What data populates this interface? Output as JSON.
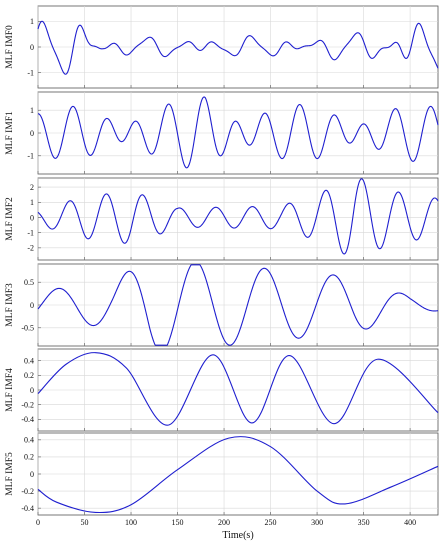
{
  "line_color": "#1f1fcf",
  "chart_data": [
    {
      "type": "line",
      "ylabel": "MLF IMF0",
      "yticks": [
        "1",
        "0",
        "-1"
      ],
      "ylim": [
        -1.6,
        1.6
      ],
      "xlim": [
        0,
        430
      ],
      "grid": true,
      "waveform": {
        "kind": "components",
        "components": [
          [
            1.6,
            0.17,
            0.3
          ],
          [
            1.2,
            0.11,
            1.4
          ],
          [
            0.55,
            0.31,
            0.9
          ]
        ],
        "amp_env": [
          [
            0,
            0.9
          ],
          [
            20,
            0.95
          ],
          [
            55,
            1.15
          ],
          [
            70,
            0.35
          ],
          [
            300,
            0.4
          ],
          [
            370,
            0.6
          ],
          [
            390,
            1.1
          ],
          [
            430,
            1.0
          ]
        ],
        "seed": 0
      }
    },
    {
      "type": "line",
      "ylabel": "MLF IMF1",
      "yticks": [
        "1",
        "0",
        "-1"
      ],
      "ylim": [
        -1.8,
        1.8
      ],
      "xlim": [
        0,
        430
      ],
      "grid": true,
      "waveform": {
        "kind": "components",
        "components": [
          [
            1.0,
            0.18,
            0.2
          ],
          [
            0.55,
            0.13,
            1.7
          ]
        ],
        "amp_env": [
          [
            0,
            0.9
          ],
          [
            150,
            1.1
          ],
          [
            180,
            1.5
          ],
          [
            260,
            1.0
          ],
          [
            430,
            1.0
          ]
        ],
        "seed": 1
      }
    },
    {
      "type": "line",
      "ylabel": "MLF IMF2",
      "yticks": [
        "2",
        "1",
        "0",
        "-1",
        "-2"
      ],
      "ylim": [
        -2.8,
        2.6
      ],
      "xlim": [
        0,
        430
      ],
      "grid": true,
      "waveform": {
        "kind": "components",
        "components": [
          [
            1.6,
            0.16,
            0.4
          ]
        ],
        "amp_env": [
          [
            0,
            0.4
          ],
          [
            50,
            1.1
          ],
          [
            100,
            1.4
          ],
          [
            130,
            0.9
          ],
          [
            150,
            0.5
          ],
          [
            260,
            0.6
          ],
          [
            300,
            1.2
          ],
          [
            340,
            2.2
          ],
          [
            380,
            1.4
          ],
          [
            430,
            1.0
          ]
        ],
        "seed": 2
      }
    },
    {
      "type": "line",
      "ylabel": "MLF IMF3",
      "yticks": [
        "0.5",
        "0",
        "-0.5"
      ],
      "ylim": [
        -0.9,
        0.9
      ],
      "xlim": [
        0,
        430
      ],
      "grid": true,
      "waveform": {
        "kind": "components",
        "components": [
          [
            0.6,
            0.085,
            3.0
          ]
        ],
        "amp_env": [
          [
            0,
            0.25
          ],
          [
            80,
            0.4
          ],
          [
            120,
            0.85
          ],
          [
            150,
            0.8
          ],
          [
            300,
            0.55
          ],
          [
            340,
            0.5
          ],
          [
            400,
            0.15
          ],
          [
            430,
            0.1
          ]
        ],
        "seed": 3
      }
    },
    {
      "type": "line",
      "ylabel": "MLF IMF4",
      "yticks": [
        "0.4",
        "0.2",
        "0",
        "-0.2",
        "-0.4"
      ],
      "ylim": [
        -0.56,
        0.56
      ],
      "xlim": [
        0,
        430
      ],
      "grid": true,
      "points": [
        [
          0,
          -0.05
        ],
        [
          30,
          0.35
        ],
        [
          62,
          0.51
        ],
        [
          95,
          0.3
        ],
        [
          140,
          -0.48
        ],
        [
          188,
          0.48
        ],
        [
          230,
          -0.45
        ],
        [
          270,
          0.47
        ],
        [
          318,
          -0.46
        ],
        [
          365,
          0.42
        ],
        [
          430,
          -0.31
        ]
      ]
    },
    {
      "type": "line",
      "ylabel": "MLF IMF5",
      "xlabel": "Time(s)",
      "yticks": [
        "0.4",
        "0.2",
        "0",
        "-0.2",
        "-0.4"
      ],
      "ylim": [
        -0.48,
        0.48
      ],
      "xlim": [
        0,
        430
      ],
      "xticks": [
        "0",
        "50",
        "100",
        "150",
        "200",
        "250",
        "300",
        "350",
        "400"
      ],
      "grid": true,
      "points": [
        [
          0,
          -0.18
        ],
        [
          20,
          -0.33
        ],
        [
          62,
          -0.45
        ],
        [
          100,
          -0.36
        ],
        [
          150,
          0.05
        ],
        [
          205,
          0.42
        ],
        [
          250,
          0.32
        ],
        [
          300,
          -0.2
        ],
        [
          330,
          -0.35
        ],
        [
          380,
          -0.15
        ],
        [
          430,
          0.09
        ]
      ]
    }
  ]
}
